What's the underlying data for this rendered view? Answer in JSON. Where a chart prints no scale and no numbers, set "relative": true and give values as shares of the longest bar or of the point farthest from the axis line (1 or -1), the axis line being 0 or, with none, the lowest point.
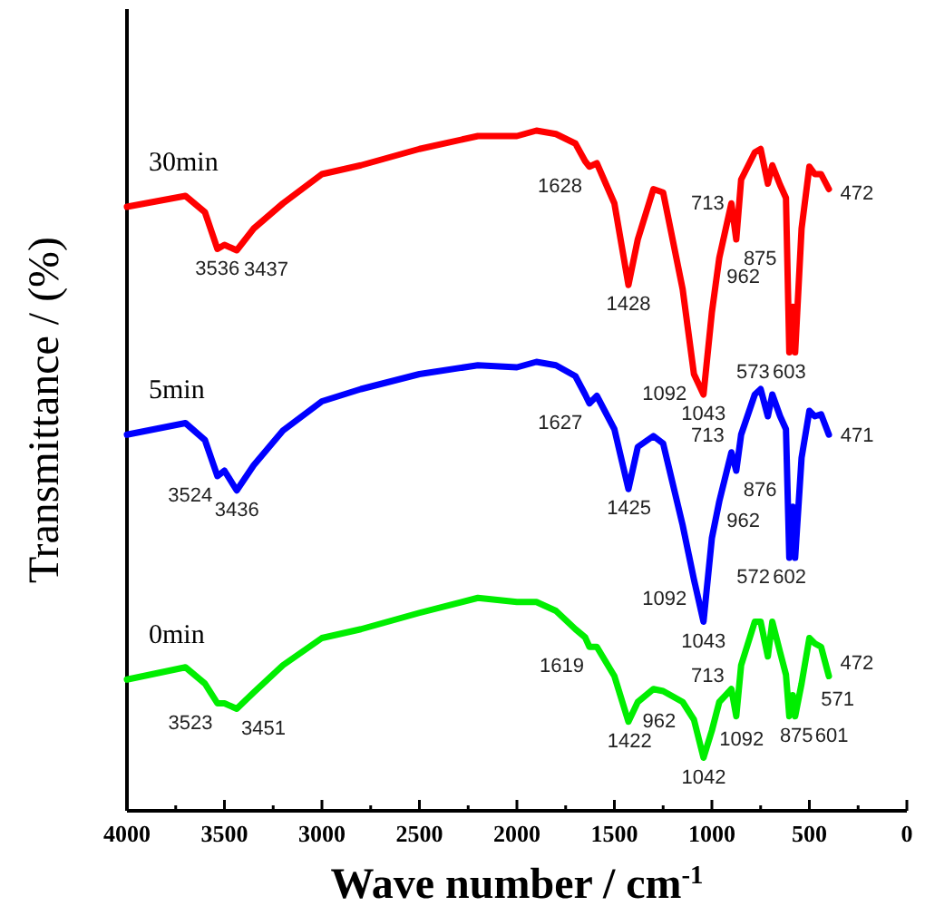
{
  "chart_data": {
    "type": "line",
    "relative": true,
    "xlabel": "Wave number / cm$^{-1}$",
    "ylabel": "Transmittance / (%)",
    "xlim": [
      4000,
      0
    ],
    "xticks": [
      4000,
      {
        "value": 3750,
        "label": null
      },
      3500,
      {
        "value": 3250,
        "label": null
      },
      3000,
      {
        "value": 2750,
        "label": null
      },
      2500,
      {
        "value": 2250,
        "label": null
      },
      2000,
      {
        "value": 1750,
        "label": null
      },
      1500,
      {
        "value": 1250,
        "label": null
      },
      1000,
      {
        "value": 750,
        "label": null
      },
      500,
      {
        "value": 250,
        "label": null
      },
      0
    ],
    "legend": false,
    "grid": false,
    "marker": "none",
    "line_style": "solid",
    "x": [
      4000,
      3700,
      3600,
      3536,
      3500,
      3437,
      3350,
      3200,
      3000,
      2800,
      2500,
      2200,
      2000,
      1900,
      1800,
      1700,
      1650,
      1628,
      1590,
      1500,
      1428,
      1380,
      1300,
      1250,
      1150,
      1092,
      1043,
      1000,
      962,
      900,
      875,
      850,
      780,
      750,
      713,
      690,
      650,
      620,
      603,
      585,
      573,
      540,
      500,
      472,
      440,
      400
    ],
    "series": [
      {
        "name": "30min",
        "color": "#ff0000",
        "values": [
          0.888,
          0.904,
          0.88,
          0.826,
          0.832,
          0.824,
          0.856,
          0.893,
          0.936,
          0.949,
          0.973,
          0.992,
          0.992,
          1.0,
          0.995,
          0.981,
          0.955,
          0.947,
          0.952,
          0.893,
          0.773,
          0.84,
          0.914,
          0.909,
          0.767,
          0.642,
          0.612,
          0.733,
          0.813,
          0.893,
          0.84,
          0.928,
          0.968,
          0.973,
          0.922,
          0.949,
          0.92,
          0.901,
          0.674,
          0.741,
          0.674,
          0.856,
          0.947,
          0.936,
          0.936,
          0.914
        ]
      },
      {
        "name": "5min",
        "color": "#0000ff",
        "values": [
          0.553,
          0.57,
          0.545,
          0.492,
          0.5,
          0.471,
          0.508,
          0.559,
          0.602,
          0.62,
          0.642,
          0.655,
          0.652,
          0.66,
          0.655,
          0.639,
          0.612,
          0.599,
          0.61,
          0.561,
          0.473,
          0.535,
          0.551,
          0.54,
          0.42,
          0.34,
          0.278,
          0.401,
          0.455,
          0.527,
          0.5,
          0.553,
          0.612,
          0.62,
          0.58,
          0.612,
          0.58,
          0.561,
          0.372,
          0.447,
          0.372,
          0.519,
          0.588,
          0.58,
          0.583,
          0.553
        ]
      },
      {
        "name": "0min",
        "color": "#00ee00",
        "values": [
          0.193,
          0.211,
          0.187,
          0.158,
          0.158,
          0.15,
          0.174,
          0.214,
          0.254,
          0.267,
          0.291,
          0.313,
          0.307,
          0.307,
          0.294,
          0.267,
          0.255,
          0.241,
          0.241,
          0.198,
          0.131,
          0.16,
          0.179,
          0.176,
          0.16,
          0.134,
          0.078,
          0.118,
          0.16,
          0.179,
          0.139,
          0.214,
          0.278,
          0.278,
          0.227,
          0.278,
          0.233,
          0.2,
          0.139,
          0.17,
          0.139,
          0.187,
          0.254,
          0.246,
          0.241,
          0.198
        ]
      }
    ],
    "annotations": [
      {
        "text": "3536",
        "x": 3536,
        "y": 0.826
      },
      {
        "text": "3437",
        "x": 3437,
        "y": 0.824
      },
      {
        "text": "1628",
        "x": 1628,
        "y": 0.947
      },
      {
        "text": "1428",
        "x": 1428,
        "y": 0.773
      },
      {
        "text": "1092",
        "x": 1092,
        "y": 0.642
      },
      {
        "text": "1043",
        "x": 1043,
        "y": 0.612
      },
      {
        "text": "962",
        "x": 962,
        "y": 0.813
      },
      {
        "text": "875",
        "x": 875,
        "y": 0.84
      },
      {
        "text": "713",
        "x": 713,
        "y": 0.922
      },
      {
        "text": "603",
        "x": 603,
        "y": 0.674
      },
      {
        "text": "573",
        "x": 573,
        "y": 0.674
      },
      {
        "text": "472",
        "x": 472,
        "y": 0.936
      },
      {
        "text": "3524",
        "x": 3524,
        "y": 0.492
      },
      {
        "text": "3436",
        "x": 3436,
        "y": 0.471
      },
      {
        "text": "1627",
        "x": 1627,
        "y": 0.599
      },
      {
        "text": "1425",
        "x": 1425,
        "y": 0.473
      },
      {
        "text": "1092",
        "x": 1092,
        "y": 0.34
      },
      {
        "text": "1043",
        "x": 1043,
        "y": 0.278
      },
      {
        "text": "962",
        "x": 962,
        "y": 0.455
      },
      {
        "text": "876",
        "x": 876,
        "y": 0.5
      },
      {
        "text": "713",
        "x": 713,
        "y": 0.58
      },
      {
        "text": "602",
        "x": 602,
        "y": 0.372
      },
      {
        "text": "572",
        "x": 572,
        "y": 0.372
      },
      {
        "text": "471",
        "x": 471,
        "y": 0.58
      },
      {
        "text": "3523",
        "x": 3523,
        "y": 0.158
      },
      {
        "text": "3451",
        "x": 3451,
        "y": 0.15
      },
      {
        "text": "1619",
        "x": 1619,
        "y": 0.241
      },
      {
        "text": "1422",
        "x": 1422,
        "y": 0.131
      },
      {
        "text": "1092",
        "x": 1092,
        "y": 0.134
      },
      {
        "text": "1042",
        "x": 1042,
        "y": 0.078
      },
      {
        "text": "962",
        "x": 962,
        "y": 0.16
      },
      {
        "text": "875",
        "x": 875,
        "y": 0.139
      },
      {
        "text": "713",
        "x": 713,
        "y": 0.227
      },
      {
        "text": "601",
        "x": 601,
        "y": 0.139
      },
      {
        "text": "571",
        "x": 571,
        "y": 0.139
      },
      {
        "text": "472",
        "x": 472,
        "y": 0.246
      }
    ]
  }
}
